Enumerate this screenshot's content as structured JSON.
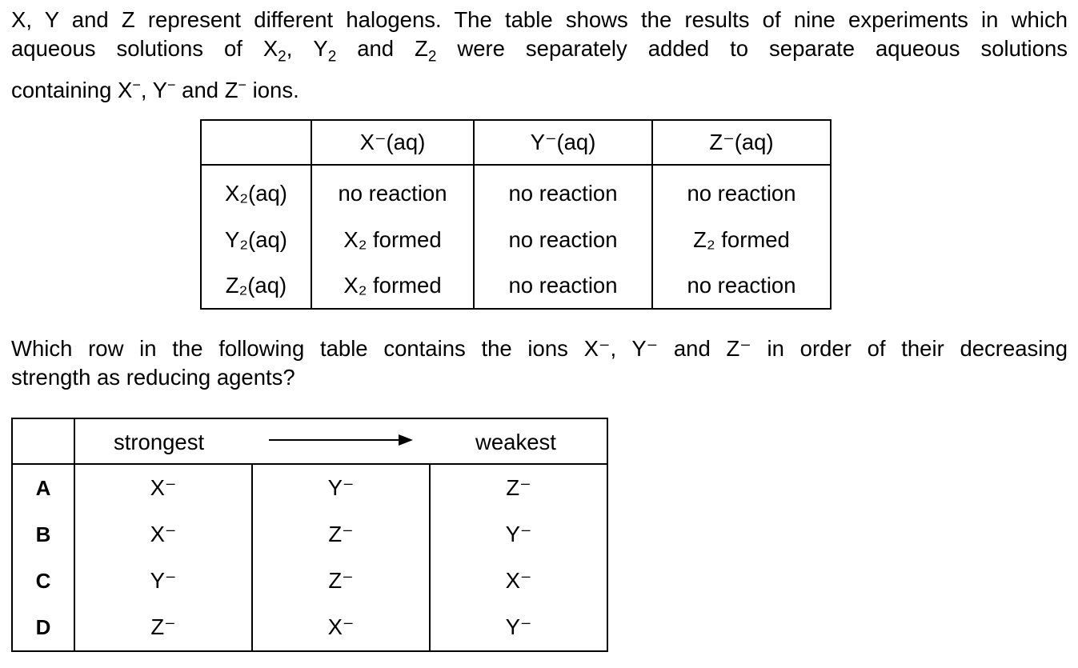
{
  "intro": {
    "line1": "X, Y and Z represent different halogens. The table shows the results of nine experiments in which",
    "line2_a": "aqueous solutions of X",
    "line2_b": ", Y",
    "line2_c": " and Z",
    "line2_d": " were separately added to separate aqueous solutions",
    "sub2": "2",
    "line3_a": "containing X",
    "line3_b": ", Y",
    "line3_c": " and Z",
    "line3_d": " ions.",
    "minus": "−"
  },
  "results_table": {
    "column_headers": [
      "X⁻(aq)",
      "Y⁻(aq)",
      "Z⁻(aq)"
    ],
    "rows": [
      {
        "reagent": "X₂(aq)",
        "cells": [
          "no reaction",
          "no reaction",
          "no reaction"
        ]
      },
      {
        "reagent": "Y₂(aq)",
        "cells": [
          "X₂ formed",
          "no reaction",
          "Z₂ formed"
        ]
      },
      {
        "reagent": "Z₂(aq)",
        "cells": [
          "X₂ formed",
          "no reaction",
          "no reaction"
        ]
      }
    ]
  },
  "question": {
    "line1": "Which row in the following table contains the ions X⁻, Y⁻ and Z⁻ in order of their decreasing",
    "line2": "strength as reducing agents?"
  },
  "options_table": {
    "header_strongest": "strongest",
    "header_weakest": "weakest",
    "rows": [
      {
        "letter": "A",
        "ions": [
          "X⁻",
          "Y⁻",
          "Z⁻"
        ]
      },
      {
        "letter": "B",
        "ions": [
          "X⁻",
          "Z⁻",
          "Y⁻"
        ]
      },
      {
        "letter": "C",
        "ions": [
          "Y⁻",
          "Z⁻",
          "X⁻"
        ]
      },
      {
        "letter": "D",
        "ions": [
          "Z⁻",
          "X⁻",
          "Y⁻"
        ]
      }
    ]
  }
}
